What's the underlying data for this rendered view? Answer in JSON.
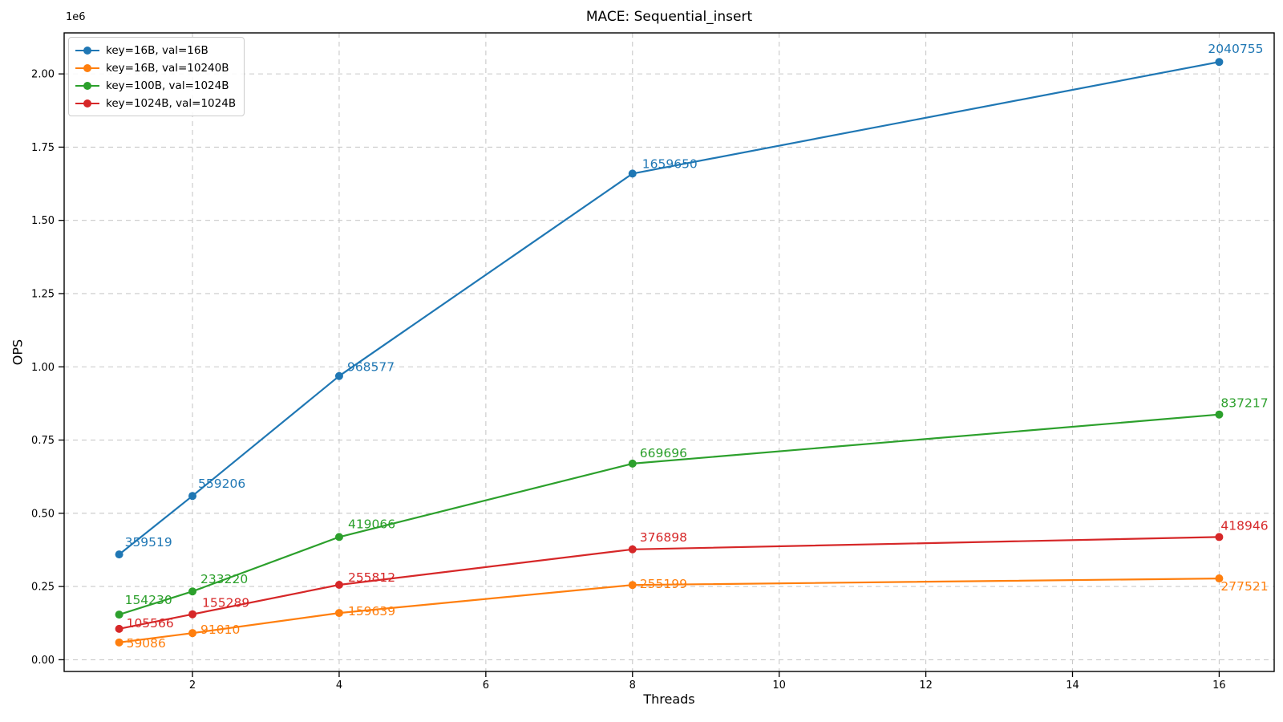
{
  "chart_data": {
    "type": "line",
    "title": "MACE: Sequential_insert",
    "xlabel": "Threads",
    "ylabel": "OPS",
    "offset_text": "1e6",
    "x": [
      1,
      2,
      4,
      8,
      16
    ],
    "xticks": [
      2,
      4,
      6,
      8,
      10,
      12,
      14,
      16
    ],
    "yticks": [
      0,
      250000,
      500000,
      750000,
      1000000,
      1250000,
      1500000,
      1750000,
      2000000
    ],
    "ytick_labels": [
      "0.00",
      "0.25",
      "0.50",
      "0.75",
      "1.00",
      "1.25",
      "1.50",
      "1.75",
      "2.00"
    ],
    "xlim": [
      0.25,
      16.75
    ],
    "ylim": [
      -40000,
      2140000
    ],
    "grid": true,
    "grid_style": "dashed",
    "grid_color": "#c9c9c9",
    "spine_color": "#000000",
    "legend_position": "upper left",
    "point_labels_shown": true,
    "series": [
      {
        "name": "key=16B, val=16B",
        "color": "#1f77b4",
        "values": [
          359519,
          559206,
          968577,
          1659650,
          2040755
        ],
        "label_offsets": [
          [
            7,
            -15
          ],
          [
            7,
            -15
          ],
          [
            10,
            -11
          ],
          [
            12,
            -12
          ],
          [
            -14,
            -16
          ]
        ]
      },
      {
        "name": "key=16B, val=10240B",
        "color": "#ff7f0e",
        "values": [
          59086,
          91010,
          159639,
          255199,
          277521
        ],
        "label_offsets": [
          [
            9,
            1
          ],
          [
            10,
            -4
          ],
          [
            11,
            -2
          ],
          [
            9,
            -1
          ],
          [
            2,
            10
          ]
        ]
      },
      {
        "name": "key=100B, val=1024B",
        "color": "#2ca02c",
        "values": [
          154230,
          233220,
          419066,
          669696,
          837217
        ],
        "label_offsets": [
          [
            7,
            -18
          ],
          [
            10,
            -15
          ],
          [
            11,
            -16
          ],
          [
            9,
            -13
          ],
          [
            2,
            -14
          ]
        ]
      },
      {
        "name": "key=1024B, val=1024B",
        "color": "#d62728",
        "values": [
          105566,
          155289,
          255812,
          376898,
          418946
        ],
        "label_offsets": [
          [
            9,
            -7
          ],
          [
            12,
            -14
          ],
          [
            11,
            -9
          ],
          [
            9,
            -15
          ],
          [
            2,
            -14
          ]
        ]
      }
    ]
  }
}
